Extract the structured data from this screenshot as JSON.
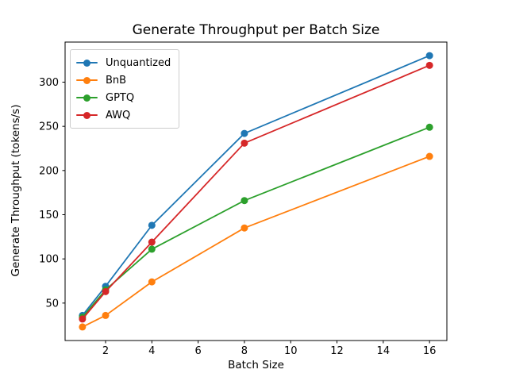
{
  "chart_data": {
    "type": "line",
    "title": "Generate Throughput per Batch Size",
    "xlabel": "Batch Size",
    "ylabel": "Generate Throughput (tokens/s)",
    "x": [
      1,
      2,
      4,
      8,
      16
    ],
    "series": [
      {
        "name": "Unquantized",
        "color": "#1f77b4",
        "values": [
          36,
          69,
          138,
          242,
          330
        ]
      },
      {
        "name": "BnB",
        "color": "#ff7f0e",
        "values": [
          23,
          36,
          74,
          135,
          216
        ]
      },
      {
        "name": "GPTQ",
        "color": "#2ca02c",
        "values": [
          34,
          65,
          111,
          166,
          249
        ]
      },
      {
        "name": "AWQ",
        "color": "#d62728",
        "values": [
          32,
          63,
          119,
          231,
          319
        ]
      }
    ],
    "xticks": [
      2,
      4,
      6,
      8,
      10,
      12,
      14,
      16
    ],
    "yticks": [
      50,
      100,
      150,
      200,
      250,
      300
    ],
    "xlim": [
      0.25,
      16.75
    ],
    "ylim": [
      7.65,
      345.35
    ],
    "grid": false,
    "legend_position": "upper left",
    "marker": "o",
    "spine_color": "#000000",
    "background": "#ffffff"
  }
}
